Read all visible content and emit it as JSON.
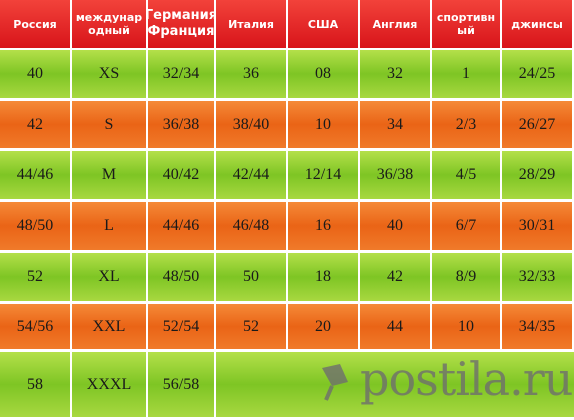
{
  "table": {
    "header": [
      "Россия",
      "международный",
      "Германия Франция",
      "Италия",
      "США",
      "Англия",
      "спортивный",
      "джинсы"
    ],
    "rows": [
      [
        "40",
        "XS",
        "32/34",
        "36",
        "08",
        "32",
        "1",
        "24/25"
      ],
      [
        "42",
        "S",
        "36/38",
        "38/40",
        "10",
        "34",
        "2/3",
        "26/27"
      ],
      [
        "44/46",
        "M",
        "40/42",
        "42/44",
        "12/14",
        "36/38",
        "4/5",
        "28/29"
      ],
      [
        "48/50",
        "L",
        "44/46",
        "46/48",
        "16",
        "40",
        "6/7",
        "30/31"
      ],
      [
        "52",
        "XL",
        "48/50",
        "50",
        "18",
        "42",
        "8/9",
        "32/33"
      ],
      [
        "54/56",
        "XXL",
        "52/54",
        "52",
        "20",
        "44",
        "10",
        "34/35"
      ],
      [
        "58",
        "XXXL",
        "56/58"
      ]
    ]
  },
  "watermark": "postila.ru"
}
